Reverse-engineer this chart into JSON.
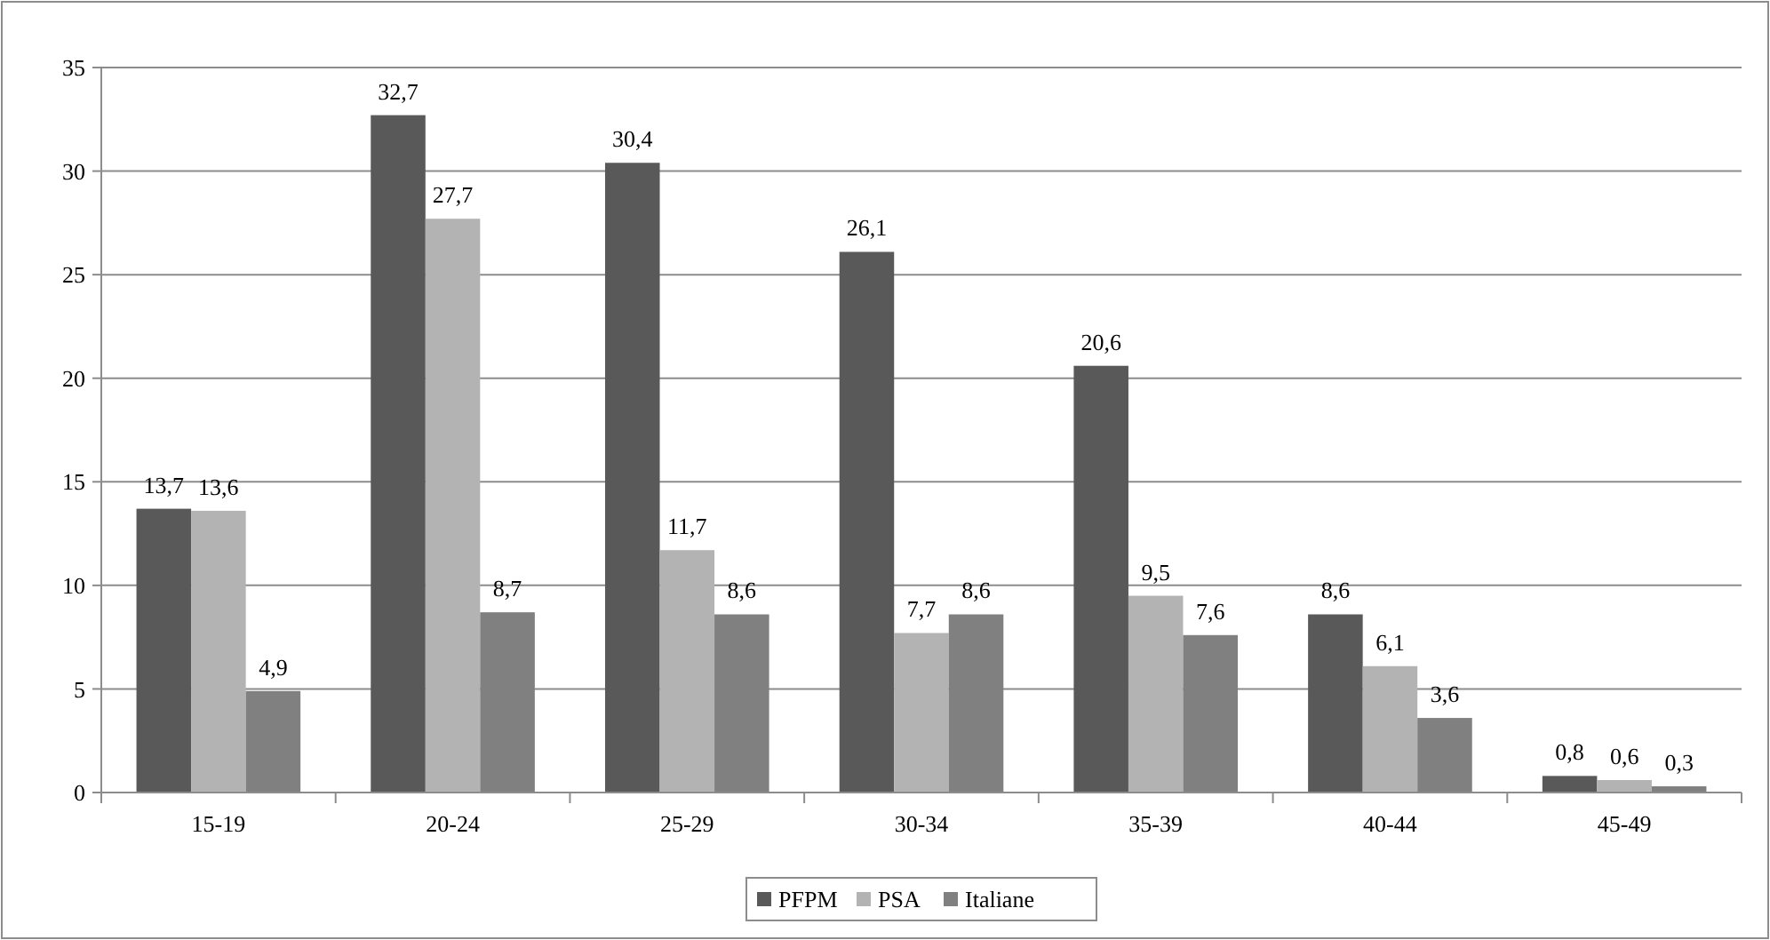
{
  "chart_data": {
    "type": "bar",
    "categories": [
      "15-19",
      "20-24",
      "25-29",
      "30-34",
      "35-39",
      "40-44",
      "45-49"
    ],
    "series": [
      {
        "name": "PFPM",
        "color": "#595959",
        "values": [
          13.7,
          32.7,
          30.4,
          26.1,
          20.6,
          8.6,
          0.8
        ],
        "value_labels": [
          "13,7",
          "32,7",
          "30,4",
          "26,1",
          "20,6",
          "8,6",
          "0,8"
        ]
      },
      {
        "name": "PSA",
        "color": "#b3b3b3",
        "values": [
          13.6,
          27.7,
          11.7,
          7.7,
          9.5,
          6.1,
          0.6
        ],
        "value_labels": [
          "13,6",
          "27,7",
          "11,7",
          "7,7",
          "9,5",
          "6,1",
          "0,6"
        ]
      },
      {
        "name": "Italiane",
        "color": "#808080",
        "values": [
          4.9,
          8.7,
          8.6,
          8.6,
          7.6,
          3.6,
          0.3
        ],
        "value_labels": [
          "4,9",
          "8,7",
          "8,6",
          "8,6",
          "7,6",
          "3,6",
          "0,3"
        ]
      }
    ],
    "ylim": [
      0,
      35
    ],
    "yticks": [
      0,
      5,
      10,
      15,
      20,
      25,
      30,
      35
    ],
    "grid": "y",
    "legend": "bottom"
  }
}
